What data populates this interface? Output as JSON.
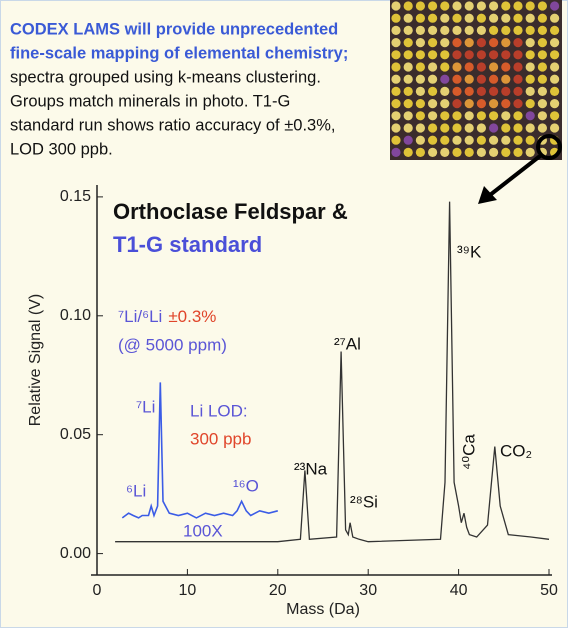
{
  "header": {
    "lines": [
      "CODEX LAMS will provide unprecedented",
      "fine-scale mapping of elemental chemistry;",
      "spectra grouped using k-means clustering.",
      "Groups match minerals in photo. T1-G",
      "standard run shows ratio accuracy of ±0.3%,",
      "LOD 300 ppb."
    ]
  },
  "chart_data": {
    "type": "line",
    "title": "Orthoclase Feldspar &",
    "subtitle": "T1-G standard",
    "x_label": "Mass (Da)",
    "y_label": "Relative Signal (V)",
    "xlim": [
      0,
      50
    ],
    "ylim": [
      -0.009,
      0.155
    ],
    "xticks": [
      0,
      10,
      20,
      30,
      40,
      50
    ],
    "yticks": [
      {
        "value": 0,
        "label": "0.00"
      },
      0.05,
      {
        "value": 0.1,
        "label": "0.10"
      },
      0.15
    ],
    "series": [
      {
        "color": "#333333",
        "x": [
          2,
          20,
          22.5,
          23,
          23.5,
          26.5,
          27,
          27.5,
          27.8,
          28,
          28.3,
          29,
          30,
          38,
          38.5,
          39,
          39.5,
          40,
          40.3,
          40.6,
          40.9,
          41.2,
          42,
          43.2,
          44,
          44.6,
          45.5,
          48,
          50
        ],
        "values": [
          0.005,
          0.005,
          0.006,
          0.035,
          0.006,
          0.007,
          0.085,
          0.01,
          0.008,
          0.013,
          0.007,
          0.006,
          0.005,
          0.006,
          0.03,
          0.148,
          0.03,
          0.02,
          0.013,
          0.017,
          0.011,
          0.008,
          0.007,
          0.012,
          0.045,
          0.02,
          0.008,
          0.007,
          0.006
        ]
      },
      {
        "color": "#3b5ce6",
        "x": [
          2.8,
          3.5,
          4,
          4.6,
          5,
          5.7,
          6,
          6.3,
          6.7,
          7,
          7.3,
          8,
          9,
          10,
          11,
          12,
          13,
          14,
          15,
          15.5,
          16,
          16.5,
          17,
          18,
          19,
          20
        ],
        "values": [
          0.015,
          0.017,
          0.016,
          0.015,
          0.016,
          0.016,
          0.02,
          0.016,
          0.02,
          0.072,
          0.022,
          0.017,
          0.016,
          0.017,
          0.015,
          0.017,
          0.016,
          0.017,
          0.016,
          0.018,
          0.022,
          0.018,
          0.016,
          0.018,
          0.017,
          0.018
        ]
      }
    ],
    "annotations": [
      "²³Na",
      "²⁷Al",
      "²⁸Si",
      "³⁹K",
      "⁴⁰Ca",
      "CO₂",
      "⁷Li",
      "⁶Li",
      "¹⁶O",
      "100X"
    ],
    "ratio_label": "⁷Li/⁶Li",
    "ratio_accuracy": "±0.3%",
    "ratio_note": "(@ 5000 ppm)",
    "lod_label": "Li LOD:",
    "lod_value": "300 ppb"
  }
}
